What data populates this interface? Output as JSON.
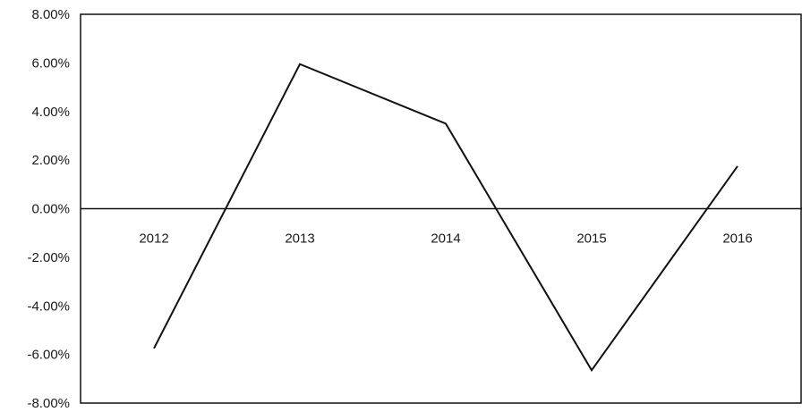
{
  "chart_data": {
    "type": "line",
    "title": "",
    "xlabel": "",
    "ylabel": "",
    "categories": [
      "2012",
      "2013",
      "2014",
      "2015",
      "2016"
    ],
    "series": [
      {
        "values": [
          -5.75,
          5.95,
          3.5,
          -6.65,
          1.75
        ]
      }
    ],
    "ylim": [
      -8,
      8
    ],
    "yticks": [
      8,
      6,
      4,
      2,
      0,
      -2,
      -4,
      -6,
      -8
    ],
    "ytick_labels": [
      "8.00%",
      "6.00%",
      "4.00%",
      "2.00%",
      "0.00%",
      "-2.00%",
      "-4.00%",
      "-6.00%",
      "-8.00%"
    ],
    "grid": false,
    "legend": "none",
    "line_color": "#111111"
  }
}
